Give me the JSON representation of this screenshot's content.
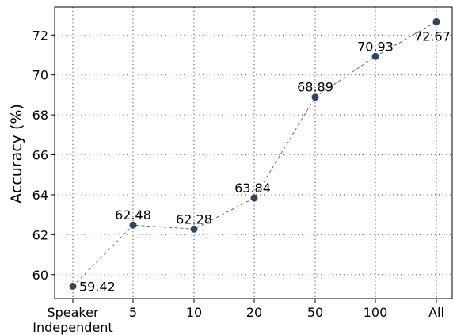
{
  "chart_data": {
    "type": "line",
    "title": "",
    "xlabel": "",
    "ylabel": "Accuracy (%)",
    "categories": [
      "Speaker\nIndependent",
      "5",
      "10",
      "20",
      "50",
      "100",
      "All"
    ],
    "values": [
      59.42,
      62.48,
      62.28,
      63.84,
      68.89,
      70.93,
      72.67
    ],
    "data_labels": [
      "59.42",
      "62.48",
      "62.28",
      "63.84",
      "68.89",
      "70.93",
      "72.67"
    ],
    "ylim": [
      58.8,
      73.4
    ],
    "yticks": [
      60,
      62,
      64,
      66,
      68,
      70,
      72
    ],
    "ytick_labels": [
      "60",
      "62",
      "64",
      "66",
      "68",
      "70",
      "72"
    ],
    "grid": true,
    "line_style": "dashed",
    "colors": {
      "marker": "#34435e",
      "line": "#6b6b6b",
      "grid": "#5a5a5a",
      "axis": "#000000"
    }
  }
}
